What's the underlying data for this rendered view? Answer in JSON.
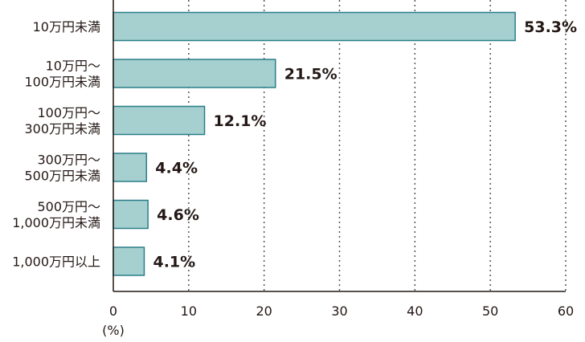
{
  "chart_data": {
    "type": "bar",
    "orientation": "horizontal",
    "categories": [
      [
        "10万円未満"
      ],
      [
        "10万円〜",
        "100万円未満"
      ],
      [
        "100万円〜",
        "300万円未満"
      ],
      [
        "300万円〜",
        "500万円未満"
      ],
      [
        "500万円〜",
        "1,000万円未満"
      ],
      [
        "1,000万円以上"
      ]
    ],
    "values": [
      53.3,
      21.5,
      12.1,
      4.4,
      4.6,
      4.1
    ],
    "value_labels": [
      "53.3%",
      "21.5%",
      "12.1%",
      "4.4%",
      "4.6%",
      "4.1%"
    ],
    "xlim": [
      0,
      60
    ],
    "xticks": [
      "0",
      "10",
      "20",
      "30",
      "40",
      "50",
      "60"
    ],
    "xlabel": "(%)",
    "grid": "vertical dotted",
    "colors": {
      "bar_fill": "#a6cfcf",
      "bar_stroke": "#2a7f8a",
      "axis": "#231815",
      "grid": "#555555",
      "text": "#231815"
    }
  }
}
